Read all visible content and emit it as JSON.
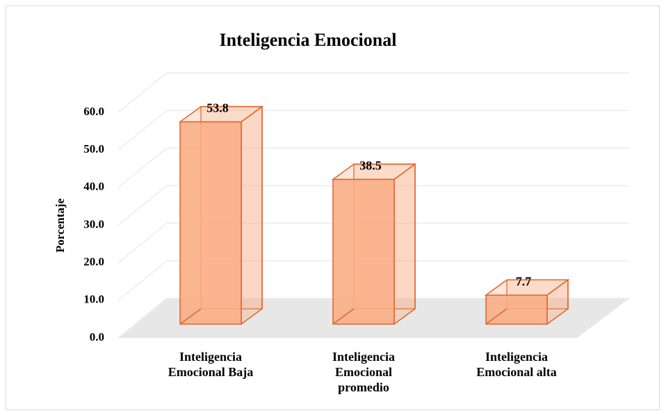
{
  "chart_data": {
    "type": "bar3d",
    "title": "Inteligencia Emocional",
    "y_label": "Porcentaje",
    "categories": [
      "Inteligencia Emocional Baja",
      "Inteligencia Emocional promedio",
      "Inteligencia Emocional alta"
    ],
    "values": [
      53.8,
      38.5,
      7.7
    ],
    "color": "#f9ad85",
    "edge_color": "#e0642a",
    "ylim": [
      0,
      60
    ],
    "yticks": [
      {
        "value": 0,
        "label": "0.0"
      },
      {
        "value": 10,
        "label": "10.0"
      },
      {
        "value": 20,
        "label": "20.0"
      },
      {
        "value": 30,
        "label": "30.0"
      },
      {
        "value": 40,
        "label": "40.0"
      },
      {
        "value": 50,
        "label": "50.0"
      },
      {
        "value": 60,
        "label": "60.0"
      }
    ],
    "grid": true
  }
}
